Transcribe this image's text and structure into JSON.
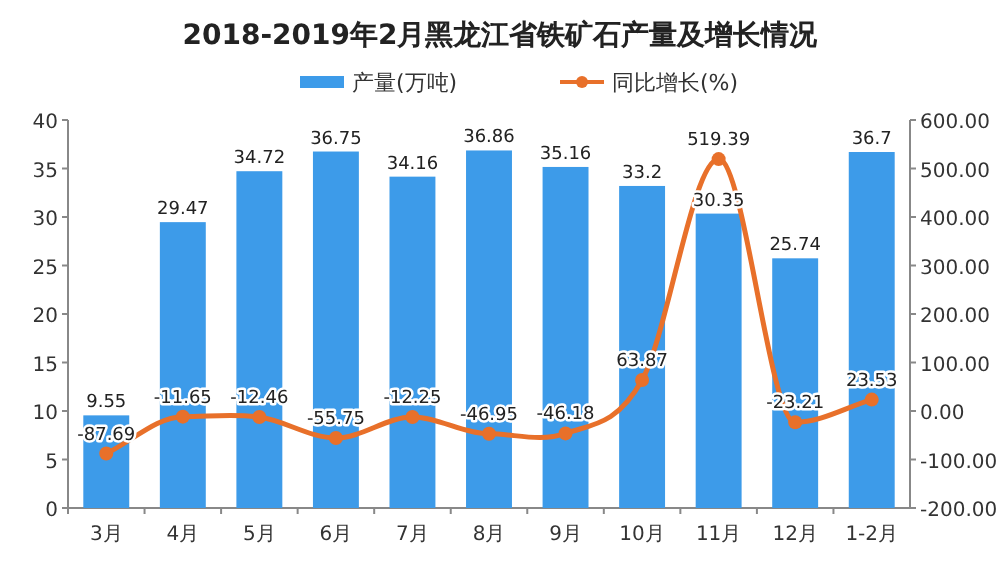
{
  "chart_data": {
    "type": "bar",
    "title": "2018-2019年2月黑龙江省铁矿石产量及增长情况",
    "categories": [
      "3月",
      "4月",
      "5月",
      "6月",
      "7月",
      "8月",
      "9月",
      "10月",
      "11月",
      "12月",
      "1-2月"
    ],
    "series": [
      {
        "name": "产量(万吨)",
        "color": "#3d9be9",
        "values": [
          9.55,
          29.47,
          34.72,
          36.75,
          34.16,
          36.86,
          35.16,
          33.2,
          30.35,
          25.74,
          36.7
        ]
      },
      {
        "name": "同比增长(%)",
        "type": "line",
        "axis": "y2",
        "color": "#e8702a",
        "marker": "circle",
        "values": [
          -87.69,
          -11.65,
          -12.46,
          -55.75,
          -12.25,
          -46.95,
          -46.18,
          63.87,
          519.39,
          -23.21,
          23.53
        ]
      }
    ],
    "ylim": [
      0,
      40
    ],
    "yticks": [
      0,
      5,
      10,
      15,
      20,
      25,
      30,
      35,
      40
    ],
    "y2lim": [
      -200,
      600
    ],
    "y2ticks": [
      {
        "value": -200,
        "label": "-200.00"
      },
      {
        "value": -100,
        "label": "-100.00"
      },
      {
        "value": 0,
        "label": "0.00"
      },
      {
        "value": 100,
        "label": "100.00"
      },
      {
        "value": 200,
        "label": "200.00"
      },
      {
        "value": 300,
        "label": "300.00"
      },
      {
        "value": 400,
        "label": "400.00"
      },
      {
        "value": 500,
        "label": "500.00"
      },
      {
        "value": 600,
        "label": "600.00"
      }
    ],
    "data_labels": true,
    "legend": "top",
    "grid": false
  }
}
